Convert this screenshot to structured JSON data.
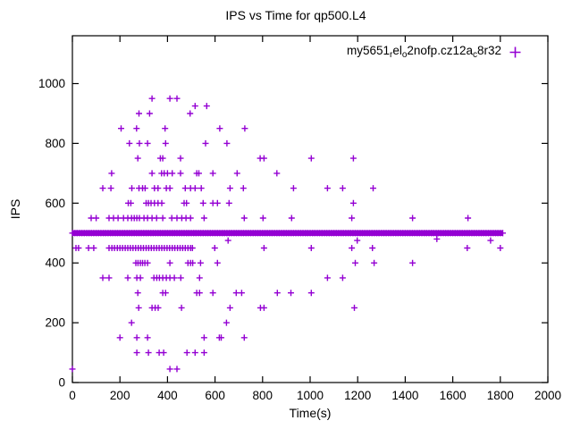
{
  "window": {
    "background": "#ffffff"
  },
  "colors": {
    "accent": "#9400D3",
    "axis": "#000000",
    "text": "#000000"
  },
  "chart_data": {
    "type": "scatter",
    "title": "IPS vs Time for qp500.L4",
    "xlabel": "Time(s)",
    "ylabel": "IPS",
    "xlim": [
      0,
      2000
    ],
    "ylim": [
      0,
      1160
    ],
    "xticks": [
      0,
      200,
      400,
      600,
      800,
      1000,
      1200,
      1400,
      1600,
      1800,
      2000
    ],
    "yticks": [
      0,
      200,
      400,
      600,
      800,
      1000
    ],
    "grid": false,
    "marker": "plus",
    "marker_color": "#9400D3",
    "legend": {
      "position": "top-right-inside",
      "label_plain": "my5651_rel_o2nofp.cz12a_c8r32",
      "label_segments": [
        {
          "text": "my5651"
        },
        {
          "sub": "r"
        },
        {
          "text": "el"
        },
        {
          "sub": "o"
        },
        {
          "text": "2nofp.cz12a"
        },
        {
          "sub": "c"
        },
        {
          "text": "8r32"
        }
      ]
    },
    "series": [
      {
        "name": "my5651_rel_o2nofp.cz12a_c8r32",
        "band": {
          "y": 500,
          "x_start": 0,
          "x_end": 1810,
          "marker_step": 10,
          "note": "dense overlapping samples forming a solid bar at IPS ~500"
        },
        "points": [
          [
            335,
            950
          ],
          [
            410,
            950
          ],
          [
            440,
            950
          ],
          [
            516,
            925
          ],
          [
            565,
            925
          ],
          [
            280,
            900
          ],
          [
            325,
            900
          ],
          [
            495,
            900
          ],
          [
            205,
            850
          ],
          [
            270,
            850
          ],
          [
            390,
            850
          ],
          [
            620,
            850
          ],
          [
            725,
            850
          ],
          [
            240,
            800
          ],
          [
            282,
            800
          ],
          [
            316,
            800
          ],
          [
            392,
            800
          ],
          [
            560,
            800
          ],
          [
            650,
            800
          ],
          [
            275,
            750
          ],
          [
            370,
            750
          ],
          [
            380,
            750
          ],
          [
            455,
            750
          ],
          [
            790,
            750
          ],
          [
            806,
            750
          ],
          [
            1005,
            750
          ],
          [
            1182,
            750
          ],
          [
            165,
            700
          ],
          [
            335,
            700
          ],
          [
            375,
            700
          ],
          [
            386,
            700
          ],
          [
            400,
            700
          ],
          [
            420,
            700
          ],
          [
            455,
            700
          ],
          [
            523,
            700
          ],
          [
            532,
            700
          ],
          [
            591,
            700
          ],
          [
            693,
            700
          ],
          [
            860,
            700
          ],
          [
            128,
            650
          ],
          [
            162,
            650
          ],
          [
            250,
            650
          ],
          [
            280,
            650
          ],
          [
            295,
            650
          ],
          [
            306,
            650
          ],
          [
            345,
            650
          ],
          [
            360,
            650
          ],
          [
            395,
            650
          ],
          [
            410,
            650
          ],
          [
            475,
            650
          ],
          [
            497,
            650
          ],
          [
            516,
            650
          ],
          [
            542,
            650
          ],
          [
            663,
            650
          ],
          [
            719,
            650
          ],
          [
            930,
            650
          ],
          [
            1073,
            650
          ],
          [
            1137,
            650
          ],
          [
            1265,
            650
          ],
          [
            235,
            600
          ],
          [
            246,
            600
          ],
          [
            310,
            600
          ],
          [
            320,
            600
          ],
          [
            331,
            600
          ],
          [
            345,
            600
          ],
          [
            360,
            600
          ],
          [
            376,
            600
          ],
          [
            470,
            600
          ],
          [
            480,
            600
          ],
          [
            550,
            600
          ],
          [
            591,
            600
          ],
          [
            610,
            600
          ],
          [
            659,
            600
          ],
          [
            1182,
            600
          ],
          [
            79,
            550
          ],
          [
            100,
            550
          ],
          [
            154,
            550
          ],
          [
            173,
            550
          ],
          [
            192,
            550
          ],
          [
            215,
            550
          ],
          [
            233,
            550
          ],
          [
            249,
            550
          ],
          [
            260,
            550
          ],
          [
            271,
            550
          ],
          [
            282,
            550
          ],
          [
            301,
            550
          ],
          [
            316,
            550
          ],
          [
            335,
            550
          ],
          [
            354,
            550
          ],
          [
            380,
            550
          ],
          [
            418,
            550
          ],
          [
            440,
            550
          ],
          [
            460,
            550
          ],
          [
            478,
            550
          ],
          [
            497,
            550
          ],
          [
            554,
            550
          ],
          [
            723,
            550
          ],
          [
            802,
            550
          ],
          [
            922,
            550
          ],
          [
            1175,
            550
          ],
          [
            1431,
            550
          ],
          [
            1664,
            550
          ],
          [
            655,
            475
          ],
          [
            1198,
            475
          ],
          [
            1533,
            480
          ],
          [
            1759,
            475
          ],
          [
            15,
            450
          ],
          [
            26,
            450
          ],
          [
            68,
            450
          ],
          [
            90,
            450
          ],
          [
            154,
            450
          ],
          [
            166,
            450
          ],
          [
            177,
            450
          ],
          [
            189,
            450
          ],
          [
            200,
            450
          ],
          [
            211,
            450
          ],
          [
            222,
            450
          ],
          [
            233,
            450
          ],
          [
            244,
            450
          ],
          [
            255,
            450
          ],
          [
            266,
            450
          ],
          [
            277,
            450
          ],
          [
            288,
            450
          ],
          [
            299,
            450
          ],
          [
            310,
            450
          ],
          [
            321,
            450
          ],
          [
            332,
            450
          ],
          [
            343,
            450
          ],
          [
            354,
            450
          ],
          [
            365,
            450
          ],
          [
            376,
            450
          ],
          [
            387,
            450
          ],
          [
            398,
            450
          ],
          [
            409,
            450
          ],
          [
            420,
            450
          ],
          [
            431,
            450
          ],
          [
            442,
            450
          ],
          [
            453,
            450
          ],
          [
            464,
            450
          ],
          [
            475,
            450
          ],
          [
            486,
            450
          ],
          [
            497,
            450
          ],
          [
            505,
            450
          ],
          [
            599,
            450
          ],
          [
            806,
            450
          ],
          [
            1005,
            450
          ],
          [
            1175,
            450
          ],
          [
            1262,
            450
          ],
          [
            1661,
            450
          ],
          [
            1800,
            450
          ],
          [
            267,
            400
          ],
          [
            276,
            400
          ],
          [
            286,
            400
          ],
          [
            295,
            400
          ],
          [
            305,
            400
          ],
          [
            316,
            400
          ],
          [
            410,
            400
          ],
          [
            486,
            400
          ],
          [
            497,
            400
          ],
          [
            506,
            400
          ],
          [
            539,
            400
          ],
          [
            610,
            400
          ],
          [
            1190,
            400
          ],
          [
            1269,
            400
          ],
          [
            1431,
            400
          ],
          [
            128,
            350
          ],
          [
            154,
            350
          ],
          [
            233,
            350
          ],
          [
            271,
            350
          ],
          [
            286,
            350
          ],
          [
            343,
            350
          ],
          [
            355,
            350
          ],
          [
            366,
            350
          ],
          [
            380,
            350
          ],
          [
            395,
            350
          ],
          [
            410,
            350
          ],
          [
            429,
            350
          ],
          [
            456,
            350
          ],
          [
            535,
            350
          ],
          [
            1073,
            350
          ],
          [
            1137,
            350
          ],
          [
            275,
            300
          ],
          [
            380,
            300
          ],
          [
            392,
            300
          ],
          [
            523,
            300
          ],
          [
            535,
            300
          ],
          [
            591,
            300
          ],
          [
            689,
            300
          ],
          [
            712,
            300
          ],
          [
            862,
            300
          ],
          [
            919,
            300
          ],
          [
            1005,
            300
          ],
          [
            279,
            250
          ],
          [
            335,
            250
          ],
          [
            348,
            250
          ],
          [
            361,
            250
          ],
          [
            459,
            250
          ],
          [
            663,
            250
          ],
          [
            791,
            250
          ],
          [
            806,
            250
          ],
          [
            1186,
            250
          ],
          [
            249,
            200
          ],
          [
            648,
            200
          ],
          [
            200,
            150
          ],
          [
            271,
            150
          ],
          [
            316,
            150
          ],
          [
            554,
            150
          ],
          [
            618,
            150
          ],
          [
            626,
            150
          ],
          [
            723,
            150
          ],
          [
            271,
            100
          ],
          [
            320,
            100
          ],
          [
            365,
            100
          ],
          [
            384,
            100
          ],
          [
            482,
            100
          ],
          [
            516,
            100
          ],
          [
            554,
            100
          ],
          [
            0,
            45
          ],
          [
            410,
            45
          ],
          [
            440,
            45
          ]
        ]
      }
    ]
  }
}
